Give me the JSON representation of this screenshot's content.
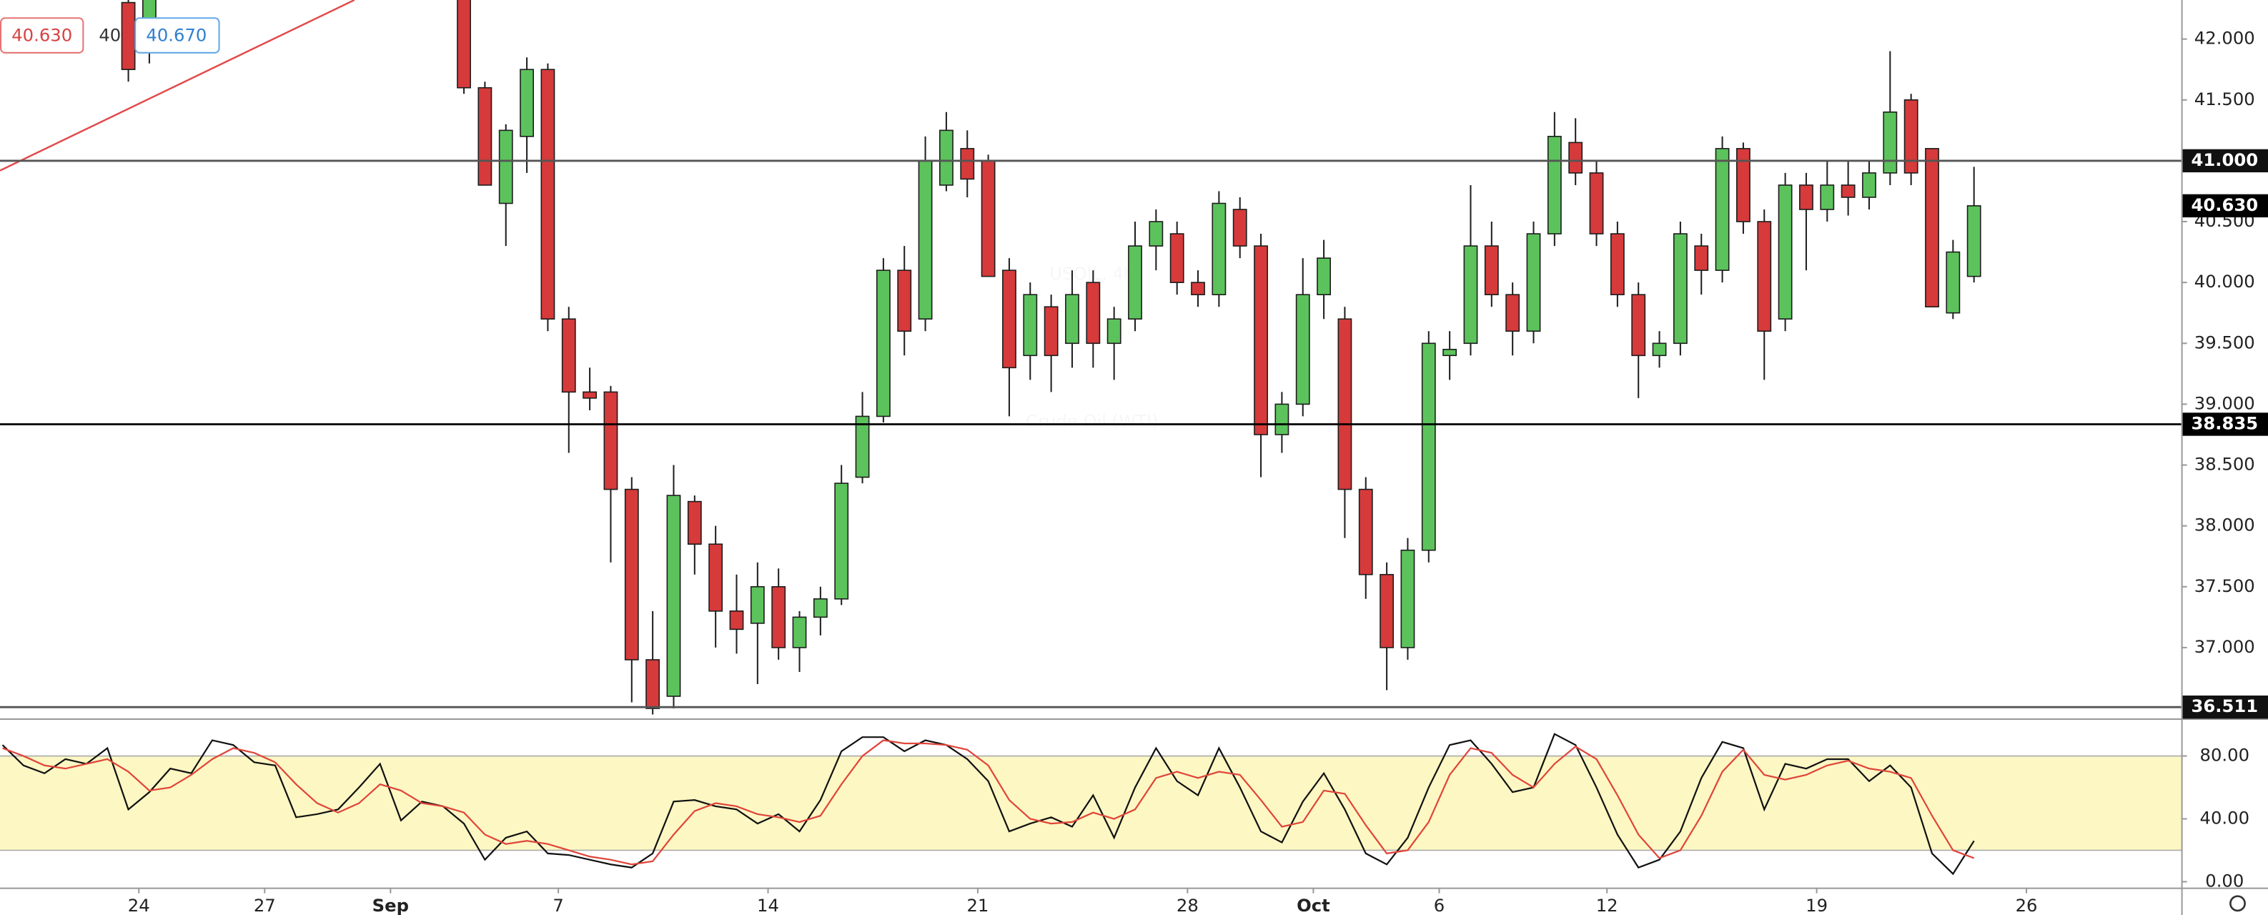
{
  "header": {
    "sell": "40.630",
    "spread": "40",
    "buy": "40.670"
  },
  "chart_data": [
    {
      "type": "candlestick",
      "watermark": [
        "USOIL, 4h",
        "Crude Oil (WTI)"
      ],
      "up_color": "#5cc35c",
      "down_color": "#d63a3a",
      "border_color": "#1e1e1e",
      "xlim": [
        -3.31,
        48.69
      ],
      "ylim": [
        36.418,
        42.321
      ],
      "yticks": [
        {
          "value": 37,
          "label": "37.000"
        },
        {
          "value": 37.5,
          "label": "37.500"
        },
        {
          "value": 38,
          "label": "38.000"
        },
        {
          "value": 38.5,
          "label": "38.500"
        },
        {
          "value": 39,
          "label": "39.000"
        },
        {
          "value": 39.5,
          "label": "39.500"
        },
        {
          "value": 40,
          "label": "40.000"
        },
        {
          "value": 40.5,
          "label": "40.500"
        },
        {
          "value": 41,
          "label": "41.000"
        },
        {
          "value": 41.5,
          "label": "41.500"
        },
        {
          "value": 42,
          "label": "42.000"
        }
      ],
      "levels": [
        {
          "value": 41,
          "label": "41.000",
          "color": "#555555"
        },
        {
          "value": 38.835,
          "label": "38.835",
          "color": "#000000"
        },
        {
          "value": 36.511,
          "label": "36.511",
          "color": "#555555"
        }
      ],
      "last": {
        "value": 40.63,
        "label": "40.630"
      },
      "x": [
        -0.25,
        0.25,
        7.75,
        8.25,
        8.75,
        9.25,
        9.75,
        10.25,
        10.75,
        11.25,
        11.75,
        12.25,
        12.75,
        13.25,
        13.75,
        14.25,
        14.75,
        15.25,
        15.75,
        16.25,
        16.75,
        17.25,
        17.75,
        18.25,
        18.75,
        19.25,
        19.75,
        20.25,
        20.75,
        21.25,
        21.75,
        22.25,
        22.75,
        23.25,
        23.75,
        24.25,
        24.75,
        25.25,
        25.75,
        26.25,
        26.75,
        27.25,
        27.75,
        28.25,
        28.75,
        29.25,
        29.75,
        30.25,
        30.75,
        31.25,
        31.75,
        32.25,
        32.75,
        33.25,
        33.75,
        34.25,
        34.75,
        35.25,
        35.75,
        36.25,
        36.75,
        37.25,
        37.75,
        38.25,
        38.75,
        39.25,
        39.75,
        40.25,
        40.75,
        41.25,
        41.75,
        42.25,
        42.75,
        43.25,
        43.75
      ],
      "open": [
        42.3,
        41.9,
        42.4,
        41.6,
        40.65,
        41.2,
        41.75,
        39.7,
        39.1,
        39.1,
        38.3,
        36.9,
        36.6,
        38.2,
        37.85,
        37.3,
        37.2,
        37.5,
        37.0,
        37.25,
        37.4,
        38.4,
        38.9,
        40.1,
        39.7,
        40.8,
        41.1,
        41.0,
        40.1,
        39.4,
        39.8,
        39.5,
        40.0,
        39.5,
        39.7,
        40.3,
        40.4,
        40.0,
        39.9,
        40.6,
        40.3,
        38.75,
        39.0,
        39.9,
        39.7,
        38.3,
        37.6,
        37.0,
        37.8,
        39.4,
        39.5,
        40.3,
        39.9,
        39.6,
        40.4,
        41.15,
        40.9,
        40.4,
        39.9,
        39.4,
        39.5,
        40.3,
        40.1,
        41.1,
        40.5,
        39.7,
        40.8,
        40.6,
        40.8,
        40.7,
        40.9,
        41.5,
        41.1,
        39.75,
        40.05
      ],
      "high": [
        42.4,
        42.4,
        42.5,
        41.65,
        41.3,
        41.85,
        41.8,
        39.8,
        39.3,
        39.15,
        38.4,
        37.3,
        38.5,
        38.25,
        38.0,
        37.6,
        37.7,
        37.65,
        37.3,
        37.5,
        38.5,
        39.1,
        40.2,
        40.3,
        41.2,
        41.4,
        41.25,
        41.05,
        40.2,
        40.0,
        39.9,
        40.1,
        40.1,
        39.8,
        40.5,
        40.6,
        40.5,
        40.1,
        40.75,
        40.7,
        40.4,
        39.1,
        40.2,
        40.35,
        39.8,
        38.4,
        37.7,
        37.9,
        39.6,
        39.6,
        40.8,
        40.5,
        40.0,
        40.5,
        41.4,
        41.35,
        41.0,
        40.5,
        40.0,
        39.6,
        40.5,
        40.4,
        41.2,
        41.15,
        40.6,
        40.9,
        40.9,
        41.0,
        41.0,
        41.0,
        41.9,
        41.55,
        41.1,
        40.35,
        40.95
      ],
      "low": [
        41.65,
        41.8,
        41.55,
        40.8,
        40.3,
        40.9,
        39.6,
        38.6,
        38.95,
        37.7,
        36.55,
        36.45,
        36.5,
        37.6,
        37.0,
        36.95,
        36.7,
        36.9,
        36.8,
        37.1,
        37.35,
        38.35,
        38.85,
        39.4,
        39.6,
        40.75,
        40.7,
        40.05,
        38.9,
        39.2,
        39.1,
        39.3,
        39.3,
        39.2,
        39.6,
        40.1,
        39.9,
        39.8,
        39.8,
        40.2,
        38.4,
        38.6,
        38.9,
        39.7,
        37.9,
        37.4,
        36.65,
        36.9,
        37.7,
        39.2,
        39.4,
        39.8,
        39.4,
        39.5,
        40.3,
        40.8,
        40.3,
        39.8,
        39.05,
        39.3,
        39.4,
        39.9,
        40.0,
        40.4,
        39.2,
        39.6,
        40.1,
        40.5,
        40.55,
        40.6,
        40.8,
        40.8,
        39.8,
        39.7,
        40.0
      ],
      "close": [
        41.75,
        42.35,
        41.6,
        40.8,
        41.25,
        41.75,
        39.7,
        39.1,
        39.05,
        38.3,
        36.9,
        36.5,
        38.25,
        37.85,
        37.3,
        37.15,
        37.5,
        37.0,
        37.25,
        37.4,
        38.35,
        38.9,
        40.1,
        39.6,
        41.0,
        41.25,
        40.85,
        40.05,
        39.3,
        39.9,
        39.4,
        39.9,
        39.5,
        39.7,
        40.3,
        40.5,
        40.0,
        39.9,
        40.65,
        40.3,
        38.75,
        39.0,
        39.9,
        40.2,
        38.3,
        37.6,
        37.0,
        37.8,
        39.5,
        39.45,
        40.3,
        39.9,
        39.6,
        40.4,
        41.2,
        40.9,
        40.4,
        39.9,
        39.4,
        39.5,
        40.4,
        40.1,
        41.1,
        40.5,
        39.6,
        40.8,
        40.6,
        40.8,
        40.7,
        40.9,
        41.4,
        40.9,
        39.8,
        40.25,
        40.63
      ]
    },
    {
      "type": "line",
      "band": [
        20,
        80
      ],
      "band_color": "#fdf7c3",
      "xlim": [
        -3.31,
        48.69
      ],
      "ylim": [
        -3.7,
        103
      ],
      "yticks": [
        {
          "value": 0,
          "label": "0.00"
        },
        {
          "value": 40,
          "label": "40.00"
        },
        {
          "value": 80,
          "label": "80.00"
        }
      ],
      "xticks": [
        {
          "value": 0,
          "label": "24"
        },
        {
          "value": 3,
          "label": "27"
        },
        {
          "value": 6,
          "label": "Sep"
        },
        {
          "value": 10,
          "label": "7"
        },
        {
          "value": 15,
          "label": "14"
        },
        {
          "value": 20,
          "label": "21"
        },
        {
          "value": 25,
          "label": "28"
        },
        {
          "value": 28,
          "label": "Oct"
        },
        {
          "value": 31,
          "label": "6"
        },
        {
          "value": 35,
          "label": "12"
        },
        {
          "value": 40,
          "label": "19"
        },
        {
          "value": 45,
          "label": "26"
        }
      ],
      "x": [
        -3.25,
        -2.75,
        -2.25,
        -1.75,
        -1.25,
        -0.75,
        -0.25,
        0.25,
        0.75,
        1.25,
        1.75,
        2.25,
        2.75,
        3.25,
        3.75,
        4.25,
        4.75,
        5.25,
        5.75,
        6.25,
        6.75,
        7.25,
        7.75,
        8.25,
        8.75,
        9.25,
        9.75,
        10.25,
        10.75,
        11.25,
        11.75,
        12.25,
        12.75,
        13.25,
        13.75,
        14.25,
        14.75,
        15.25,
        15.75,
        16.25,
        16.75,
        17.25,
        17.75,
        18.25,
        18.75,
        19.25,
        19.75,
        20.25,
        20.75,
        21.25,
        21.75,
        22.25,
        22.75,
        23.25,
        23.75,
        24.25,
        24.75,
        25.25,
        25.75,
        26.25,
        26.75,
        27.25,
        27.75,
        28.25,
        28.75,
        29.25,
        29.75,
        30.25,
        30.75,
        31.25,
        31.75,
        32.25,
        32.75,
        33.25,
        33.75,
        34.25,
        34.75,
        35.25,
        35.75,
        36.25,
        36.75,
        37.25,
        37.75,
        38.25,
        38.75,
        39.25,
        39.75,
        40.25,
        40.75,
        41.25,
        41.75,
        42.25,
        42.75,
        43.25,
        43.75
      ],
      "series": [
        {
          "color": "#111111",
          "values": [
            87,
            74,
            69,
            78,
            75,
            85,
            46,
            57,
            72,
            69,
            90,
            87,
            76,
            74,
            41,
            43,
            46,
            60,
            75,
            39,
            51,
            48,
            37,
            14,
            28,
            32,
            18,
            17,
            14,
            11,
            9,
            18,
            51,
            52,
            48,
            46,
            37,
            43,
            32,
            52,
            83,
            92,
            92,
            83,
            90,
            87,
            78,
            64,
            32,
            37,
            41,
            35,
            55,
            28,
            60,
            85,
            64,
            55,
            85,
            60,
            32,
            25,
            51,
            69,
            46,
            18,
            11,
            28,
            60,
            87,
            90,
            75,
            57,
            60,
            94,
            87,
            60,
            30,
            9,
            14,
            32,
            66,
            89,
            85,
            46,
            75,
            72,
            78,
            78,
            64,
            74,
            60,
            18,
            5,
            26
          ]
        },
        {
          "color": "#e0453a",
          "values": [
            85,
            80,
            74,
            72,
            75,
            78,
            70,
            58,
            60,
            68,
            78,
            85,
            82,
            76,
            62,
            50,
            44,
            50,
            62,
            58,
            50,
            48,
            44,
            30,
            24,
            26,
            24,
            20,
            16,
            14,
            11,
            13,
            30,
            45,
            50,
            48,
            43,
            41,
            38,
            42,
            62,
            80,
            90,
            88,
            88,
            87,
            84,
            74,
            52,
            40,
            37,
            38,
            44,
            40,
            46,
            66,
            70,
            66,
            70,
            68,
            52,
            35,
            38,
            58,
            56,
            36,
            18,
            20,
            38,
            68,
            85,
            82,
            68,
            60,
            75,
            86,
            78,
            55,
            30,
            15,
            20,
            42,
            70,
            84,
            68,
            65,
            68,
            74,
            77,
            72,
            70,
            66,
            42,
            20,
            15
          ]
        }
      ]
    }
  ]
}
